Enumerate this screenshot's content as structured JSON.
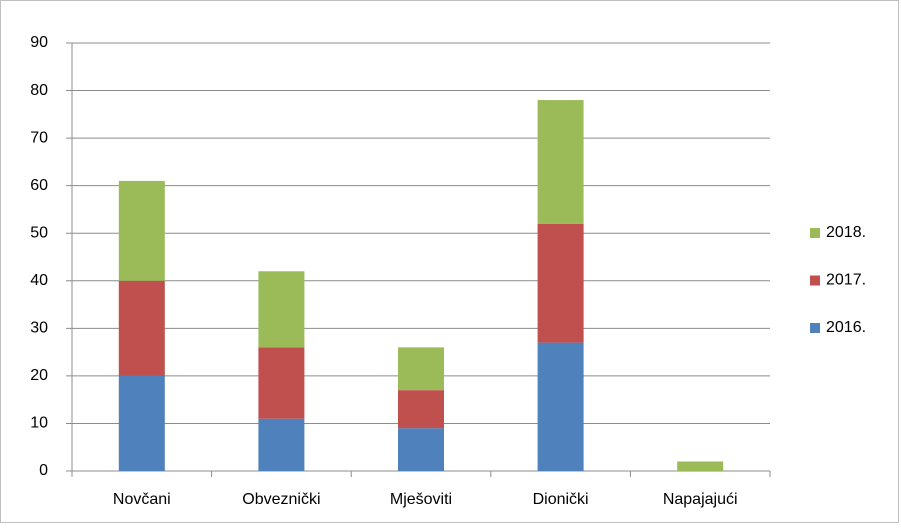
{
  "chart_data": {
    "type": "stacked_bar",
    "categories": [
      "Novčani",
      "Obveznički",
      "Mješoviti",
      "Dionički",
      "Napajajući"
    ],
    "series": [
      {
        "name": "2016.",
        "color": "#4f81bd",
        "values": [
          20,
          11,
          9,
          27,
          0
        ]
      },
      {
        "name": "2017.",
        "color": "#c0504d",
        "values": [
          20,
          15,
          8,
          25,
          0
        ]
      },
      {
        "name": "2018.",
        "color": "#9bbb59",
        "values": [
          21,
          16,
          9,
          26,
          2
        ]
      }
    ],
    "ylim": [
      0,
      90
    ],
    "yticks": [
      0,
      10,
      20,
      30,
      40,
      50,
      60,
      70,
      80,
      90
    ],
    "grid": true,
    "legend": "right"
  }
}
